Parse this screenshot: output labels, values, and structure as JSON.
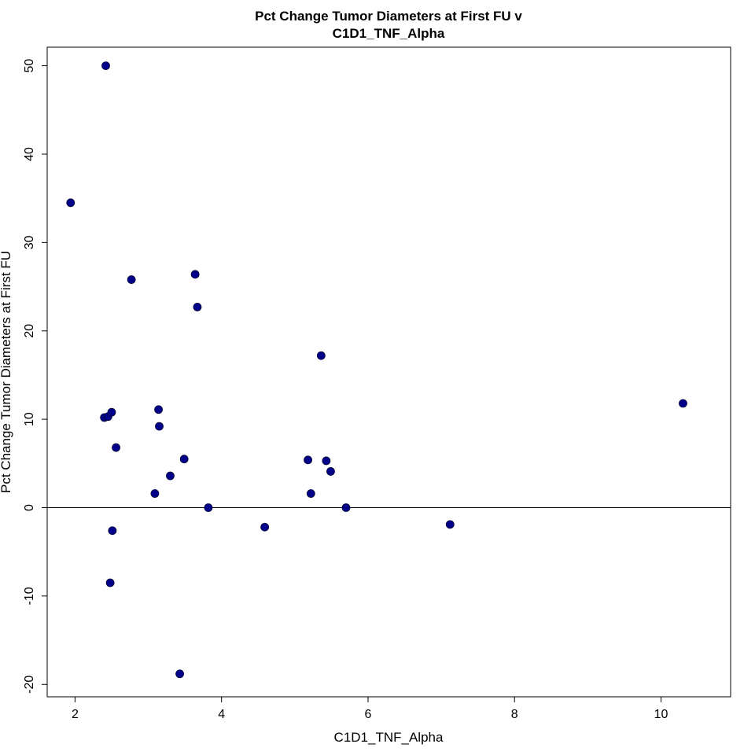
{
  "chart_data": {
    "type": "scatter",
    "title": [
      "Pct Change Tumor Diameters at First FU v",
      "C1D1_TNF_Alpha"
    ],
    "xlabel": "C1D1_TNF_Alpha",
    "ylabel": "Pct Change Tumor Diameters at First FU",
    "xlim": [
      1.62,
      10.95
    ],
    "ylim": [
      -21.4,
      52.1
    ],
    "xticks": [
      2,
      4,
      6,
      8,
      10
    ],
    "yticks": [
      -20,
      -10,
      0,
      10,
      20,
      30,
      40,
      50
    ],
    "reference_line_y": 0,
    "grid": false,
    "point_color": "#00008B",
    "points": [
      {
        "x": 1.94,
        "y": 34.5
      },
      {
        "x": 2.42,
        "y": 50.0
      },
      {
        "x": 2.4,
        "y": 10.2
      },
      {
        "x": 2.45,
        "y": 10.3
      },
      {
        "x": 2.5,
        "y": 10.8
      },
      {
        "x": 2.56,
        "y": 6.8
      },
      {
        "x": 2.51,
        "y": -2.6
      },
      {
        "x": 2.48,
        "y": -8.5
      },
      {
        "x": 2.77,
        "y": 25.8
      },
      {
        "x": 3.09,
        "y": 1.6
      },
      {
        "x": 3.14,
        "y": 11.1
      },
      {
        "x": 3.15,
        "y": 9.2
      },
      {
        "x": 3.3,
        "y": 3.6
      },
      {
        "x": 3.43,
        "y": -18.8
      },
      {
        "x": 3.49,
        "y": 5.5
      },
      {
        "x": 3.64,
        "y": 26.4
      },
      {
        "x": 3.67,
        "y": 22.7
      },
      {
        "x": 3.82,
        "y": 0.0
      },
      {
        "x": 4.59,
        "y": -2.2
      },
      {
        "x": 5.18,
        "y": 5.4
      },
      {
        "x": 5.22,
        "y": 1.6
      },
      {
        "x": 5.36,
        "y": 17.2
      },
      {
        "x": 5.43,
        "y": 5.3
      },
      {
        "x": 5.49,
        "y": 4.1
      },
      {
        "x": 5.7,
        "y": 0.0
      },
      {
        "x": 7.12,
        "y": -1.9
      },
      {
        "x": 10.3,
        "y": 11.8
      }
    ]
  }
}
